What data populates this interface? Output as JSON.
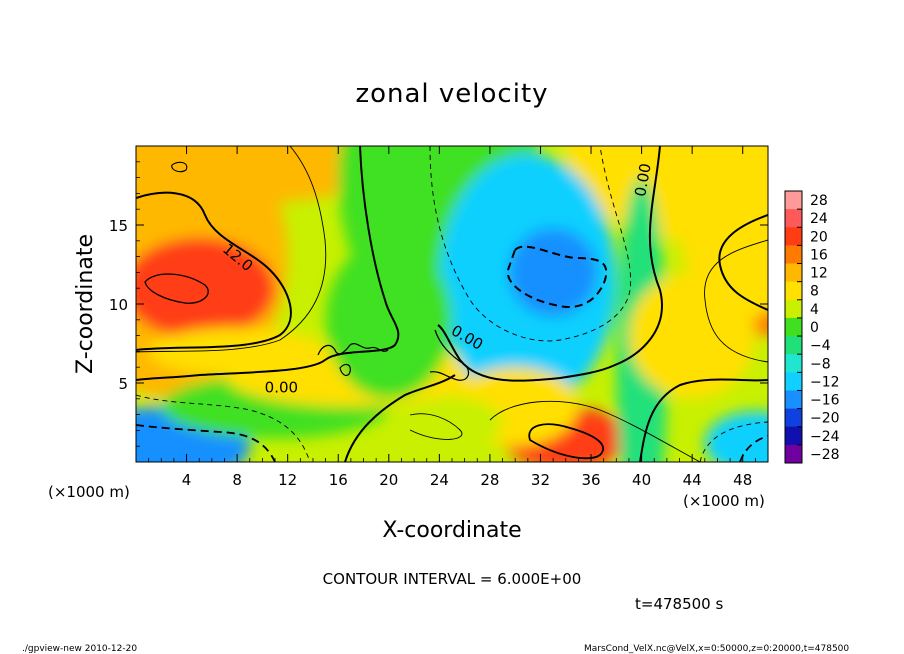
{
  "chart_data": {
    "type": "heatmap",
    "title": "zonal velocity",
    "xlabel": "X-coordinate",
    "ylabel": "Z-coordinate",
    "x_unit_label": "(×1000 m)",
    "y_unit_label": "(×1000 m)",
    "xlim": [
      0,
      50
    ],
    "ylim": [
      0,
      20
    ],
    "x_ticks": [
      4,
      8,
      12,
      16,
      20,
      24,
      28,
      32,
      36,
      40,
      44,
      48
    ],
    "y_ticks": [
      5,
      10,
      15
    ],
    "colorbar": {
      "levels": [
        28,
        24,
        20,
        16,
        12,
        8,
        4,
        0,
        -4,
        -8,
        -12,
        -16,
        -20,
        -24,
        -28
      ],
      "colors": [
        "#ff9a9a",
        "#ff5a5a",
        "#ff3c14",
        "#ff7a00",
        "#ffb800",
        "#ffe000",
        "#c8f000",
        "#40e020",
        "#20e07a",
        "#20e6d0",
        "#10d0ff",
        "#1890ff",
        "#1040e0",
        "#1010b0",
        "#7000a0"
      ]
    },
    "contour_labels": [
      {
        "text": "12.0",
        "x": 7.8,
        "z": 12.7,
        "angle": 40
      },
      {
        "text": "0.00",
        "x": 26.0,
        "z": 7.6,
        "angle": 30
      },
      {
        "text": "0.00",
        "x": 40.5,
        "z": 17.8,
        "angle": -80
      },
      {
        "text": "0.00",
        "x": 11.5,
        "z": 4.4,
        "angle": 0
      }
    ],
    "blobs": [
      {
        "x": 0,
        "z": 20,
        "rx": 25,
        "ry": 4,
        "value": 12
      },
      {
        "x": 44,
        "z": 20,
        "rx": 10,
        "ry": 6,
        "value": 10
      },
      {
        "x": 24,
        "z": 18,
        "rx": 8,
        "ry": 10,
        "value": 2
      },
      {
        "x": 3,
        "z": 13,
        "rx": 9,
        "ry": 9,
        "value": 13
      },
      {
        "x": 5,
        "z": 11,
        "rx": 6,
        "ry": 3.2,
        "value": 20
      },
      {
        "x": 2,
        "z": 1,
        "rx": 7,
        "ry": 2.5,
        "value": -14
      },
      {
        "x": 11,
        "z": 3.5,
        "rx": 9,
        "ry": 2,
        "value": 2
      },
      {
        "x": 17,
        "z": 5.5,
        "rx": 10,
        "ry": 2,
        "value": 10
      },
      {
        "x": 8,
        "z": 7,
        "rx": 7,
        "ry": 1.5,
        "value": 10
      },
      {
        "x": 31,
        "z": 11.5,
        "rx": 7,
        "ry": 8,
        "value": -10
      },
      {
        "x": 33,
        "z": 12,
        "rx": 3.5,
        "ry": 2.8,
        "value": -14
      },
      {
        "x": 20,
        "z": 9,
        "rx": 5,
        "ry": 5,
        "value": 2
      },
      {
        "x": 50,
        "z": 12,
        "rx": 4,
        "ry": 4,
        "value": 18
      },
      {
        "x": 48,
        "z": 15,
        "rx": 5,
        "ry": 6,
        "value": 10
      },
      {
        "x": 49,
        "z": 1.2,
        "rx": 4,
        "ry": 2,
        "value": -12
      },
      {
        "x": 34,
        "z": 1.5,
        "rx": 5,
        "ry": 2,
        "value": 20
      },
      {
        "x": 30,
        "z": 3.5,
        "rx": 5,
        "ry": 2.5,
        "value": 8
      },
      {
        "x": 25,
        "z": 2.5,
        "rx": 4,
        "ry": 1.6,
        "value": 6
      },
      {
        "x": 40,
        "z": 6,
        "rx": 2,
        "ry": 12,
        "value": -4
      },
      {
        "x": 44,
        "z": 8,
        "rx": 5,
        "ry": 4,
        "value": 8
      }
    ],
    "background_value": 4
  },
  "text": {
    "contour_interval": "CONTOUR INTERVAL = 6.000E+00",
    "time": "t=478500 s",
    "footer_left": "./gpview-new  2010-12-20",
    "footer_right": "MarsCond_VelX.nc@VelX,x=0:50000,z=0:20000,t=478500"
  }
}
